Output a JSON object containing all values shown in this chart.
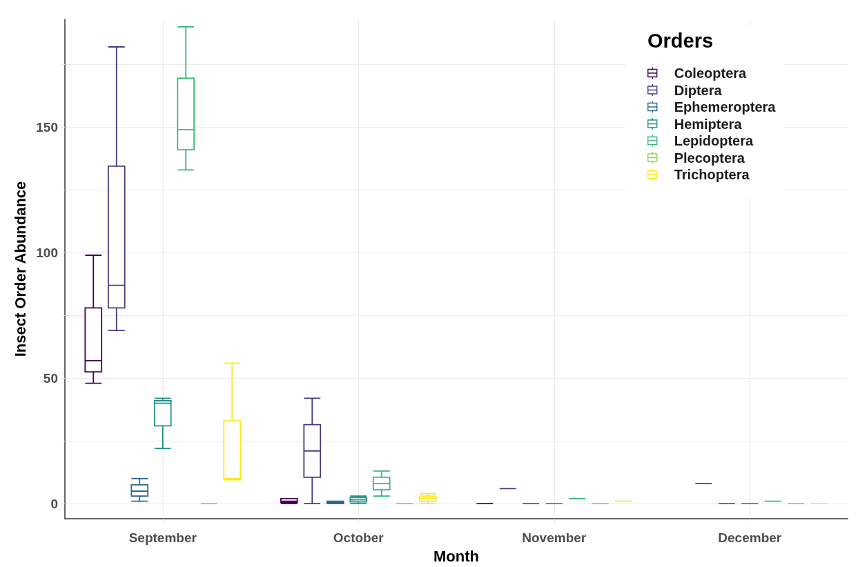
{
  "chart_data": {
    "type": "box",
    "xlabel": "Month",
    "ylabel": "Insect Order Abundance",
    "legend_title": "Orders",
    "legend": "top right",
    "grid": true,
    "categories": [
      "September",
      "October",
      "November",
      "December"
    ],
    "ylim": [
      -6,
      193
    ],
    "yticks": [
      0,
      {
        "value": 25,
        "label": null
      },
      50,
      {
        "value": 75,
        "label": null
      },
      100,
      {
        "value": 125,
        "label": null
      },
      150,
      {
        "value": 175,
        "label": null
      }
    ],
    "series": [
      {
        "name": "Coleoptera",
        "color": "#440154",
        "boxes": [
          {
            "low": 48,
            "q1": 52.5,
            "median": 57,
            "q3": 78,
            "high": 99
          },
          {
            "low": 0,
            "q1": 0.5,
            "median": 1,
            "q3": 2,
            "high": 2
          },
          {
            "low": 0,
            "q1": 0,
            "median": 0,
            "q3": 0,
            "high": 0
          },
          null
        ]
      },
      {
        "name": "Diptera",
        "color": "#443a83",
        "boxes": [
          {
            "low": 69,
            "q1": 78,
            "median": 87,
            "q3": 134.5,
            "high": 182
          },
          {
            "low": 0,
            "q1": 10.5,
            "median": 21,
            "q3": 31.5,
            "high": 42
          },
          {
            "low": 6,
            "q1": 6,
            "median": 6,
            "q3": 6,
            "high": 6
          },
          {
            "low": 8,
            "q1": 8,
            "median": 8,
            "q3": 8,
            "high": 8
          }
        ]
      },
      {
        "name": "Ephemeroptera",
        "color": "#31688e",
        "boxes": [
          {
            "low": 1,
            "q1": 3,
            "median": 5,
            "q3": 7.5,
            "high": 10
          },
          {
            "low": 0,
            "q1": 0,
            "median": 0.5,
            "q3": 1,
            "high": 1
          },
          {
            "low": 0,
            "q1": 0,
            "median": 0,
            "q3": 0,
            "high": 0
          },
          {
            "low": 0,
            "q1": 0,
            "median": 0,
            "q3": 0,
            "high": 0
          }
        ]
      },
      {
        "name": "Hemiptera",
        "color": "#21908c",
        "boxes": [
          {
            "low": 22,
            "q1": 31,
            "median": 40,
            "q3": 41,
            "high": 42
          },
          {
            "low": 0,
            "q1": 0.7,
            "median": 1.5,
            "q3": 2.4,
            "high": 3
          },
          {
            "low": 0,
            "q1": 0,
            "median": 0,
            "q3": 0,
            "high": 0
          },
          {
            "low": 0,
            "q1": 0,
            "median": 0,
            "q3": 0,
            "high": 0
          }
        ]
      },
      {
        "name": "Lepidoptera",
        "color": "#35b779",
        "boxes": [
          {
            "low": 133,
            "q1": 141,
            "median": 149,
            "q3": 169.5,
            "high": 190
          },
          {
            "low": 3,
            "q1": 5.5,
            "median": 8,
            "q3": 10.5,
            "high": 13
          },
          {
            "low": 2,
            "q1": 2,
            "median": 2,
            "q3": 2,
            "high": 2
          },
          {
            "low": 1,
            "q1": 1,
            "median": 1,
            "q3": 1,
            "high": 1
          }
        ]
      },
      {
        "name": "Plecoptera",
        "color": "#8fd744",
        "boxes": [
          {
            "low": 0,
            "q1": 0,
            "median": 0,
            "q3": 0,
            "high": 0
          },
          {
            "low": 0,
            "q1": 0,
            "median": 0,
            "q3": 0,
            "high": 0
          },
          {
            "low": 0,
            "q1": 0,
            "median": 0,
            "q3": 0,
            "high": 0
          },
          {
            "low": 0,
            "q1": 0,
            "median": 0,
            "q3": 0,
            "high": 0
          }
        ]
      },
      {
        "name": "Trichoptera",
        "color": "#fde725",
        "boxes": [
          {
            "low": 9.5,
            "q1": 9.5,
            "median": 10,
            "q3": 33,
            "high": 56
          },
          {
            "low": 0,
            "q1": 1,
            "median": 2,
            "q3": 3,
            "high": 4
          },
          {
            "low": 1,
            "q1": 1,
            "median": 1,
            "q3": 1,
            "high": 1
          },
          {
            "low": 0,
            "q1": 0,
            "median": 0,
            "q3": 0,
            "high": 0
          }
        ]
      }
    ]
  }
}
